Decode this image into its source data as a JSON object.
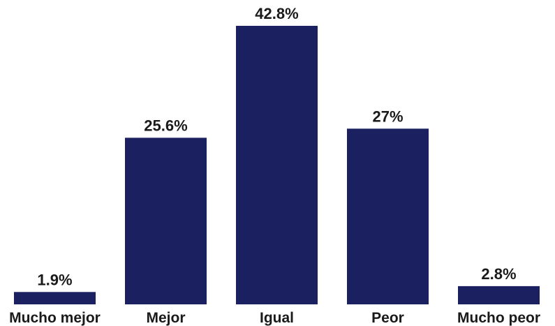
{
  "chart_data": {
    "type": "bar",
    "categories": [
      "Mucho mejor",
      "Mejor",
      "Igual",
      "Peor",
      "Mucho peor"
    ],
    "values": [
      1.9,
      25.6,
      42.8,
      27,
      2.8
    ],
    "value_labels": [
      "1.9%",
      "25.6%",
      "42.8%",
      "27%",
      "2.8%"
    ],
    "ylim": [
      0,
      42.8
    ],
    "bar_color": "#1b2160",
    "grid": false,
    "legend": "none"
  }
}
